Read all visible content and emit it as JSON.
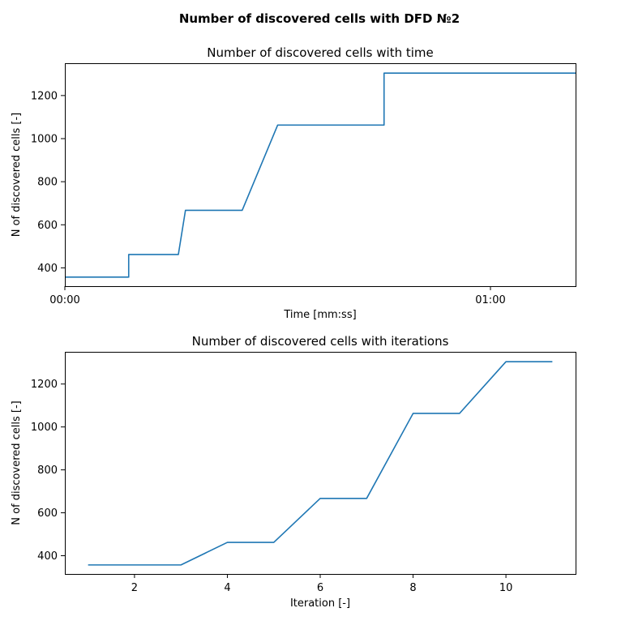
{
  "figure": {
    "suptitle": "Number of discovered cells with DFD №2"
  },
  "chart_data": [
    {
      "type": "line",
      "title": "Number of discovered cells with time",
      "xlabel": "Time [mm:ss]",
      "ylabel": "N of discovered cells [-]",
      "x_format": "mm:ss",
      "xlim": [
        "00:00",
        "01:12"
      ],
      "ylim": [
        315,
        1350
      ],
      "xticks": [
        "00:00",
        "01:00"
      ],
      "yticks": [
        400,
        600,
        800,
        1000,
        1200
      ],
      "grid": false,
      "legend": "none",
      "color": "#1f77b4",
      "series": [
        {
          "x": [
            "00:00",
            "00:09",
            "00:09",
            "00:16",
            "00:17",
            "00:25",
            "00:30",
            "00:45",
            "00:45",
            "01:12"
          ],
          "y": [
            357,
            357,
            462,
            462,
            667,
            667,
            1063,
            1063,
            1304,
            1304
          ]
        }
      ]
    },
    {
      "type": "line",
      "title": "Number of discovered cells with iterations",
      "xlabel": "Iteration [-]",
      "ylabel": "N of discovered cells [-]",
      "xlim": [
        0.5,
        11.5
      ],
      "ylim": [
        315,
        1350
      ],
      "xticks": [
        2,
        4,
        6,
        8,
        10
      ],
      "yticks": [
        400,
        600,
        800,
        1000,
        1200
      ],
      "grid": false,
      "legend": "none",
      "color": "#1f77b4",
      "series": [
        {
          "x": [
            1,
            2,
            3,
            4,
            5,
            6,
            7,
            8,
            9,
            10,
            11
          ],
          "y": [
            357,
            357,
            357,
            462,
            462,
            667,
            667,
            1063,
            1063,
            1304,
            1304
          ]
        }
      ]
    }
  ]
}
